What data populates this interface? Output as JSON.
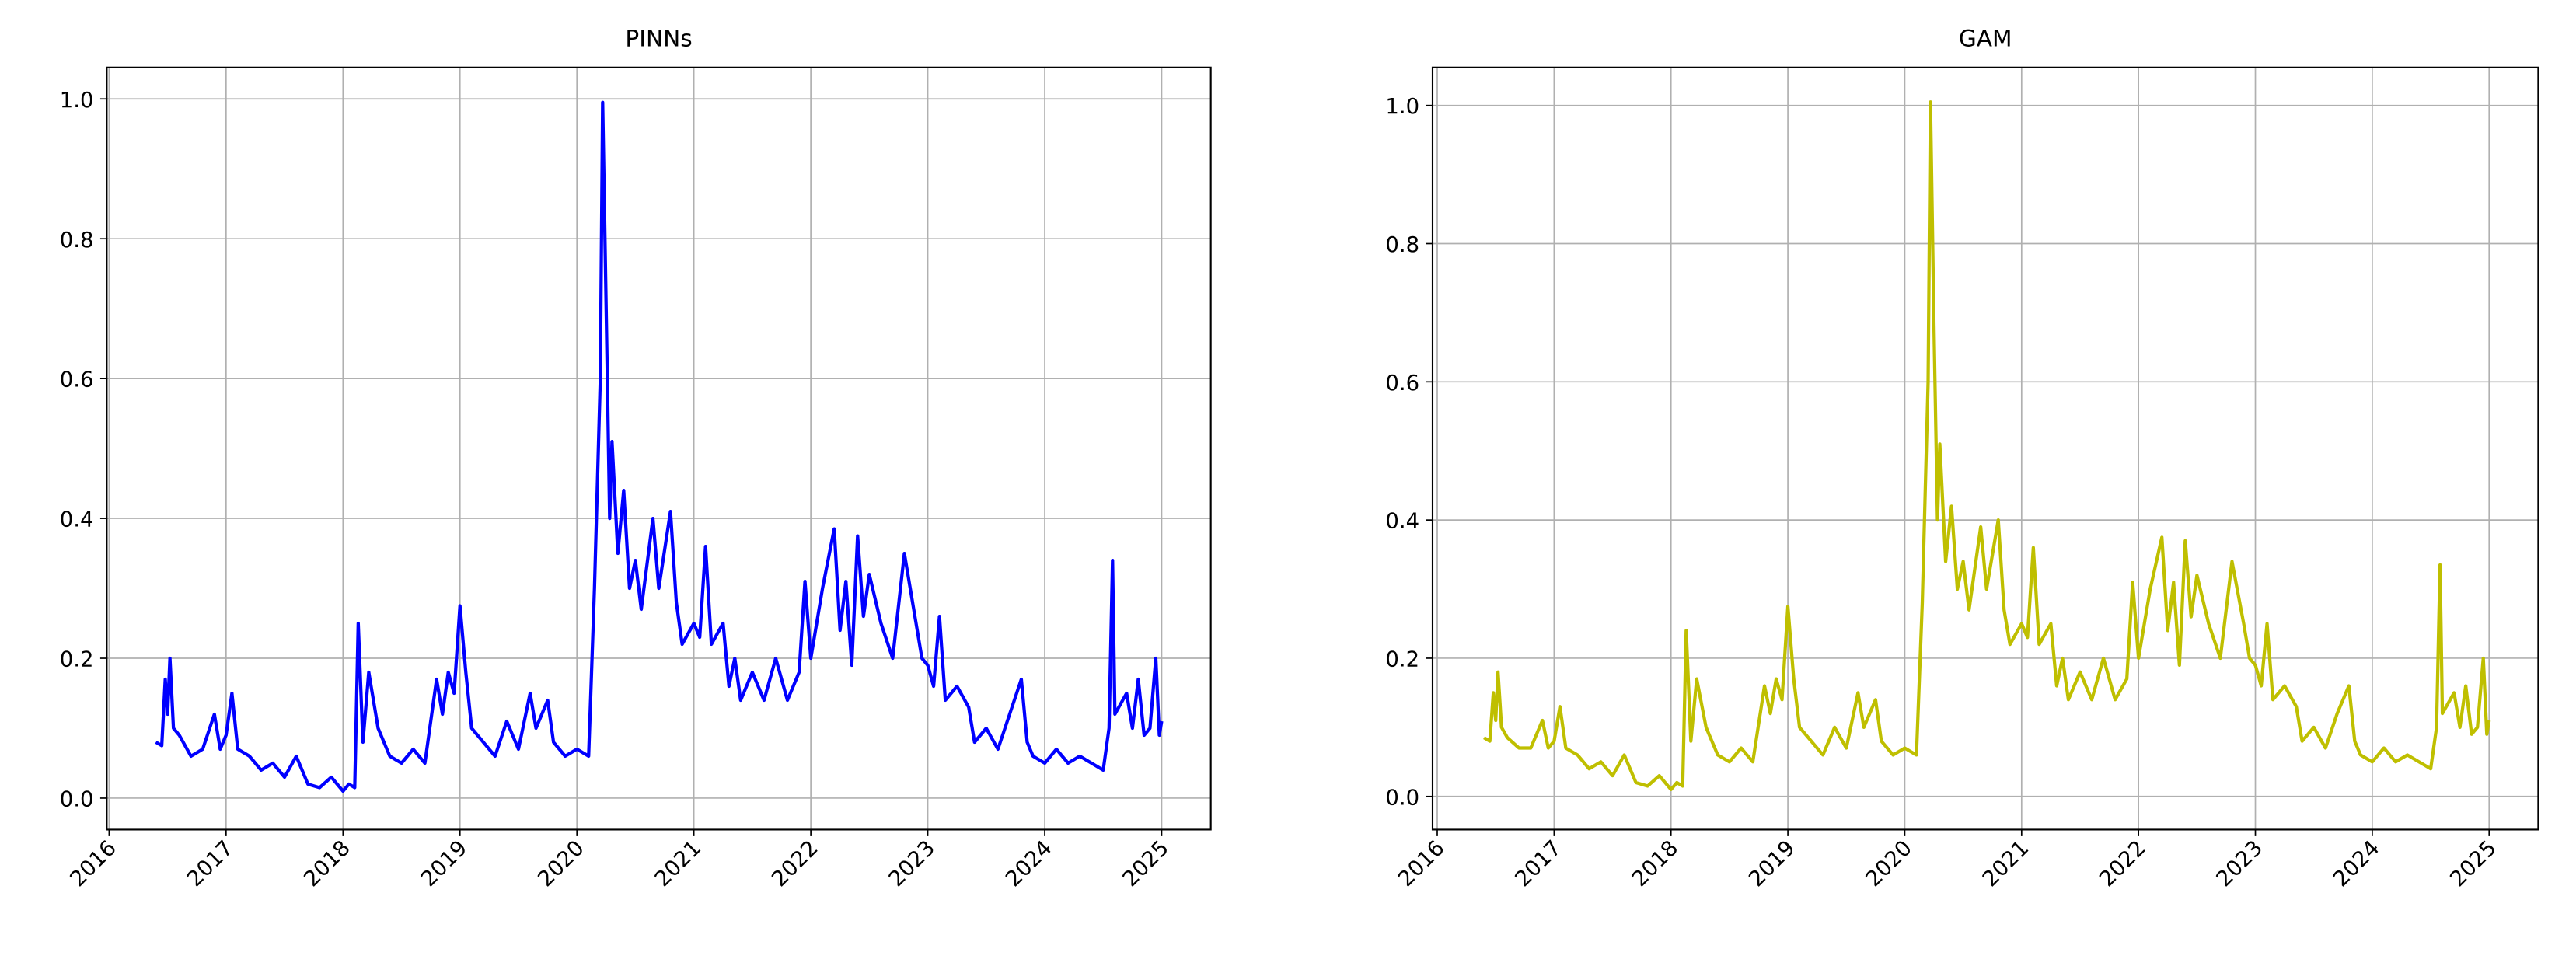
{
  "chart_data": [
    {
      "type": "line",
      "title": "PINNs",
      "grid": true,
      "x": [
        2016.4,
        2016.45,
        2016.48,
        2016.5,
        2016.52,
        2016.55,
        2016.6,
        2016.7,
        2016.8,
        2016.9,
        2016.95,
        2017.0,
        2017.05,
        2017.1,
        2017.2,
        2017.3,
        2017.4,
        2017.5,
        2017.6,
        2017.7,
        2017.8,
        2017.9,
        2018.0,
        2018.05,
        2018.1,
        2018.13,
        2018.17,
        2018.22,
        2018.3,
        2018.4,
        2018.5,
        2018.6,
        2018.7,
        2018.8,
        2018.85,
        2018.9,
        2018.95,
        2019.0,
        2019.05,
        2019.1,
        2019.2,
        2019.3,
        2019.4,
        2019.5,
        2019.6,
        2019.65,
        2019.75,
        2019.8,
        2019.9,
        2020.0,
        2020.1,
        2020.15,
        2020.2,
        2020.22,
        2020.25,
        2020.28,
        2020.3,
        2020.35,
        2020.4,
        2020.45,
        2020.5,
        2020.55,
        2020.65,
        2020.7,
        2020.8,
        2020.85,
        2020.9,
        2021.0,
        2021.05,
        2021.1,
        2021.15,
        2021.25,
        2021.3,
        2021.35,
        2021.4,
        2021.5,
        2021.6,
        2021.7,
        2021.8,
        2021.9,
        2021.95,
        2022.0,
        2022.1,
        2022.2,
        2022.25,
        2022.3,
        2022.35,
        2022.4,
        2022.45,
        2022.5,
        2022.6,
        2022.7,
        2022.8,
        2022.9,
        2022.95,
        2023.0,
        2023.05,
        2023.1,
        2023.15,
        2023.25,
        2023.35,
        2023.4,
        2023.5,
        2023.6,
        2023.7,
        2023.8,
        2023.85,
        2023.9,
        2024.0,
        2024.1,
        2024.2,
        2024.3,
        2024.4,
        2024.5,
        2024.55,
        2024.58,
        2024.6,
        2024.7,
        2024.75,
        2024.8,
        2024.85,
        2024.9,
        2024.95,
        2024.98,
        2025.0
      ],
      "series": [
        {
          "name": "PINNs",
          "color": "#0000ff",
          "values": [
            0.08,
            0.075,
            0.17,
            0.12,
            0.2,
            0.1,
            0.09,
            0.06,
            0.07,
            0.12,
            0.07,
            0.09,
            0.15,
            0.07,
            0.06,
            0.04,
            0.05,
            0.03,
            0.06,
            0.02,
            0.015,
            0.03,
            0.01,
            0.02,
            0.015,
            0.25,
            0.08,
            0.18,
            0.1,
            0.06,
            0.05,
            0.07,
            0.05,
            0.17,
            0.12,
            0.18,
            0.15,
            0.275,
            0.18,
            0.1,
            0.08,
            0.06,
            0.11,
            0.07,
            0.15,
            0.1,
            0.14,
            0.08,
            0.06,
            0.07,
            0.06,
            0.3,
            0.6,
            0.995,
            0.7,
            0.4,
            0.51,
            0.35,
            0.44,
            0.3,
            0.34,
            0.27,
            0.4,
            0.3,
            0.41,
            0.28,
            0.22,
            0.25,
            0.23,
            0.36,
            0.22,
            0.25,
            0.16,
            0.2,
            0.14,
            0.18,
            0.14,
            0.2,
            0.14,
            0.18,
            0.31,
            0.2,
            0.3,
            0.385,
            0.24,
            0.31,
            0.19,
            0.375,
            0.26,
            0.32,
            0.25,
            0.2,
            0.35,
            0.25,
            0.2,
            0.19,
            0.16,
            0.26,
            0.14,
            0.16,
            0.13,
            0.08,
            0.1,
            0.07,
            0.12,
            0.17,
            0.08,
            0.06,
            0.05,
            0.07,
            0.05,
            0.06,
            0.05,
            0.04,
            0.1,
            0.34,
            0.12,
            0.15,
            0.1,
            0.17,
            0.09,
            0.1,
            0.2,
            0.09,
            0.11
          ]
        }
      ],
      "xlim": [
        2015.98,
        2025.42
      ],
      "xticks": [
        2016,
        2017,
        2018,
        2019,
        2020,
        2021,
        2022,
        2023,
        2024,
        2025
      ],
      "ylim": [
        -0.045,
        1.045
      ],
      "yticks": [
        {
          "value": 0,
          "label": "0.0"
        },
        0.2,
        0.4,
        0.6,
        0.8,
        {
          "value": 1,
          "label": "1.0"
        }
      ]
    },
    {
      "type": "line",
      "title": "GAM",
      "grid": true,
      "x": [
        2016.4,
        2016.45,
        2016.48,
        2016.5,
        2016.52,
        2016.55,
        2016.6,
        2016.7,
        2016.8,
        2016.9,
        2016.95,
        2017.0,
        2017.05,
        2017.1,
        2017.2,
        2017.3,
        2017.4,
        2017.5,
        2017.6,
        2017.7,
        2017.8,
        2017.9,
        2018.0,
        2018.05,
        2018.1,
        2018.13,
        2018.17,
        2018.22,
        2018.3,
        2018.4,
        2018.5,
        2018.6,
        2018.7,
        2018.8,
        2018.85,
        2018.9,
        2018.95,
        2019.0,
        2019.05,
        2019.1,
        2019.2,
        2019.3,
        2019.4,
        2019.5,
        2019.6,
        2019.65,
        2019.75,
        2019.8,
        2019.9,
        2020.0,
        2020.1,
        2020.15,
        2020.2,
        2020.22,
        2020.25,
        2020.28,
        2020.3,
        2020.35,
        2020.4,
        2020.45,
        2020.5,
        2020.55,
        2020.65,
        2020.7,
        2020.8,
        2020.85,
        2020.9,
        2021.0,
        2021.05,
        2021.1,
        2021.15,
        2021.25,
        2021.3,
        2021.35,
        2021.4,
        2021.5,
        2021.6,
        2021.7,
        2021.8,
        2021.9,
        2021.95,
        2022.0,
        2022.1,
        2022.2,
        2022.25,
        2022.3,
        2022.35,
        2022.4,
        2022.45,
        2022.5,
        2022.6,
        2022.7,
        2022.8,
        2022.9,
        2022.95,
        2023.0,
        2023.05,
        2023.1,
        2023.15,
        2023.25,
        2023.35,
        2023.4,
        2023.5,
        2023.6,
        2023.7,
        2023.8,
        2023.85,
        2023.9,
        2024.0,
        2024.1,
        2024.2,
        2024.3,
        2024.4,
        2024.5,
        2024.55,
        2024.58,
        2024.6,
        2024.7,
        2024.75,
        2024.8,
        2024.85,
        2024.9,
        2024.95,
        2024.98,
        2025.0
      ],
      "series": [
        {
          "name": "GAM",
          "color": "#bfbf00",
          "values": [
            0.085,
            0.08,
            0.15,
            0.11,
            0.18,
            0.1,
            0.085,
            0.07,
            0.07,
            0.11,
            0.07,
            0.08,
            0.13,
            0.07,
            0.06,
            0.04,
            0.05,
            0.03,
            0.06,
            0.02,
            0.015,
            0.03,
            0.01,
            0.02,
            0.015,
            0.24,
            0.08,
            0.17,
            0.1,
            0.06,
            0.05,
            0.07,
            0.05,
            0.16,
            0.12,
            0.17,
            0.14,
            0.275,
            0.17,
            0.1,
            0.08,
            0.06,
            0.1,
            0.07,
            0.15,
            0.1,
            0.14,
            0.08,
            0.06,
            0.07,
            0.06,
            0.28,
            0.6,
            1.005,
            0.68,
            0.4,
            0.51,
            0.34,
            0.42,
            0.3,
            0.34,
            0.27,
            0.39,
            0.3,
            0.4,
            0.27,
            0.22,
            0.25,
            0.23,
            0.36,
            0.22,
            0.25,
            0.16,
            0.2,
            0.14,
            0.18,
            0.14,
            0.2,
            0.14,
            0.17,
            0.31,
            0.2,
            0.3,
            0.375,
            0.24,
            0.31,
            0.19,
            0.37,
            0.26,
            0.32,
            0.25,
            0.2,
            0.34,
            0.25,
            0.2,
            0.19,
            0.16,
            0.25,
            0.14,
            0.16,
            0.13,
            0.08,
            0.1,
            0.07,
            0.12,
            0.16,
            0.08,
            0.06,
            0.05,
            0.07,
            0.05,
            0.06,
            0.05,
            0.04,
            0.1,
            0.335,
            0.12,
            0.15,
            0.1,
            0.16,
            0.09,
            0.1,
            0.2,
            0.09,
            0.11
          ]
        }
      ],
      "xlim": [
        2015.96,
        2025.42
      ],
      "xticks": [
        2016,
        2017,
        2018,
        2019,
        2020,
        2021,
        2022,
        2023,
        2024,
        2025
      ],
      "ylim": [
        -0.048,
        1.055
      ],
      "yticks": [
        {
          "value": 0,
          "label": "0.0"
        },
        0.2,
        0.4,
        0.6,
        0.8,
        {
          "value": 1,
          "label": "1.0"
        }
      ]
    }
  ]
}
